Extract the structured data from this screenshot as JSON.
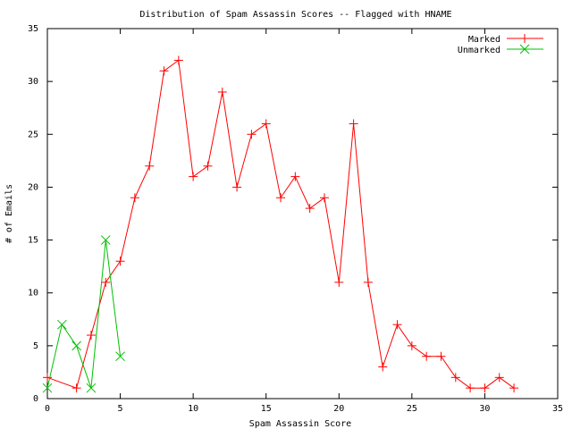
{
  "chart_data": {
    "type": "line",
    "title": "Distribution of Spam Assassin Scores -- Flagged with HNAME",
    "xlabel": "Spam Assassin Score",
    "ylabel": "# of Emails",
    "xlim": [
      0,
      35
    ],
    "ylim": [
      0,
      35
    ],
    "xticks": [
      0,
      5,
      10,
      15,
      20,
      25,
      30,
      35
    ],
    "yticks": [
      0,
      5,
      10,
      15,
      20,
      25,
      30,
      35
    ],
    "grid": false,
    "legend_position": "top-right",
    "series": [
      {
        "name": "Marked",
        "color": "#ff0000",
        "marker": "plus",
        "x": [
          0,
          2,
          3,
          4,
          5,
          6,
          7,
          8,
          9,
          10,
          11,
          12,
          13,
          14,
          15,
          16,
          17,
          18,
          19,
          20,
          21,
          22,
          23,
          24,
          25,
          26,
          27,
          28,
          29,
          30,
          31,
          32
        ],
        "y": [
          2,
          1,
          6,
          11,
          13,
          19,
          22,
          31,
          32,
          21,
          22,
          29,
          20,
          25,
          26,
          19,
          21,
          18,
          19,
          11,
          26,
          11,
          3,
          7,
          5,
          4,
          4,
          2,
          1,
          1,
          2,
          1
        ]
      },
      {
        "name": "Unmarked",
        "color": "#00c000",
        "marker": "cross",
        "x": [
          0,
          1,
          2,
          3,
          4,
          5
        ],
        "y": [
          1,
          7,
          5,
          1,
          15,
          4
        ]
      }
    ]
  }
}
